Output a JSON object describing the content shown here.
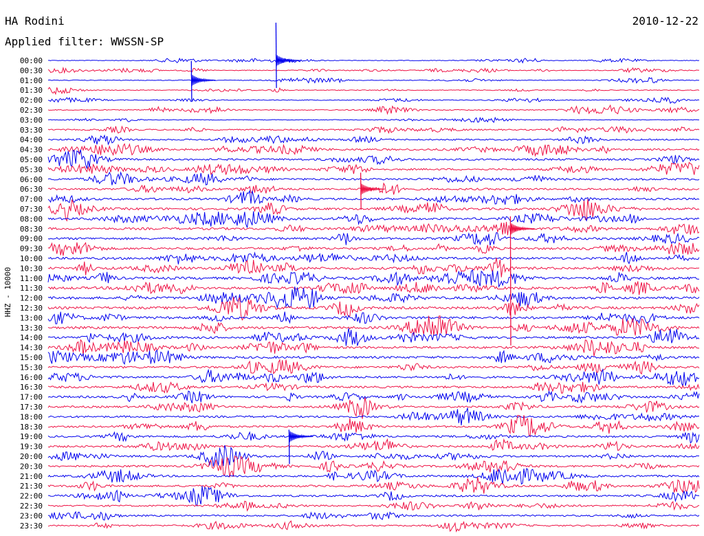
{
  "header": {
    "station": "HA Rodini",
    "filter": "Applied filter: WWSSN-SP",
    "date": "2010-12-22"
  },
  "chart_data": {
    "type": "line",
    "title": "HA Rodini",
    "subtitle": "Applied filter: WWSSN-SP",
    "ylabel": "HHZ - 10000",
    "xlabel": "",
    "grid": false,
    "legend": "none",
    "trace_colors": [
      "#0000ee",
      "#ee1144"
    ],
    "rows": [
      "00:00",
      "00:30",
      "01:00",
      "01:30",
      "02:00",
      "02:30",
      "03:00",
      "03:30",
      "04:00",
      "04:30",
      "05:00",
      "05:30",
      "06:00",
      "06:30",
      "07:00",
      "07:30",
      "08:00",
      "08:30",
      "09:00",
      "09:30",
      "10:00",
      "10:30",
      "11:00",
      "11:30",
      "12:00",
      "12:30",
      "13:00",
      "13:30",
      "14:00",
      "14:30",
      "15:00",
      "15:30",
      "16:00",
      "16:30",
      "17:00",
      "17:30",
      "18:00",
      "18:30",
      "19:00",
      "19:30",
      "20:00",
      "20:30",
      "21:00",
      "21:30",
      "22:00",
      "22:30",
      "23:00",
      "23:30"
    ],
    "noise_level": [
      1,
      1.2,
      1,
      1.2,
      1.2,
      1.5,
      1,
      2,
      2.2,
      3,
      3,
      2.8,
      3,
      3,
      3.2,
      3.5,
      3.2,
      3.5,
      3.5,
      3.5,
      3.5,
      3.8,
      3.8,
      3.8,
      3.8,
      3.8,
      3.8,
      3.8,
      3.5,
      3.5,
      3.5,
      3.2,
      3.2,
      3.2,
      3.2,
      3,
      3,
      3,
      3,
      3,
      3,
      3,
      3,
      3,
      3,
      2.5,
      2.5,
      2.2
    ],
    "events": [
      {
        "row": "00:00",
        "minute": 10.5,
        "up": 55,
        "down": 40
      },
      {
        "row": "01:00",
        "minute": 6.6,
        "up": 28,
        "down": 30
      },
      {
        "row": "06:30",
        "minute": 14.4,
        "up": 24,
        "down": 30
      },
      {
        "row": "08:30",
        "minute": 21.3,
        "up": 18,
        "down": 170
      },
      {
        "row": "19:00",
        "minute": 11.1,
        "up": 10,
        "down": 40
      }
    ]
  }
}
